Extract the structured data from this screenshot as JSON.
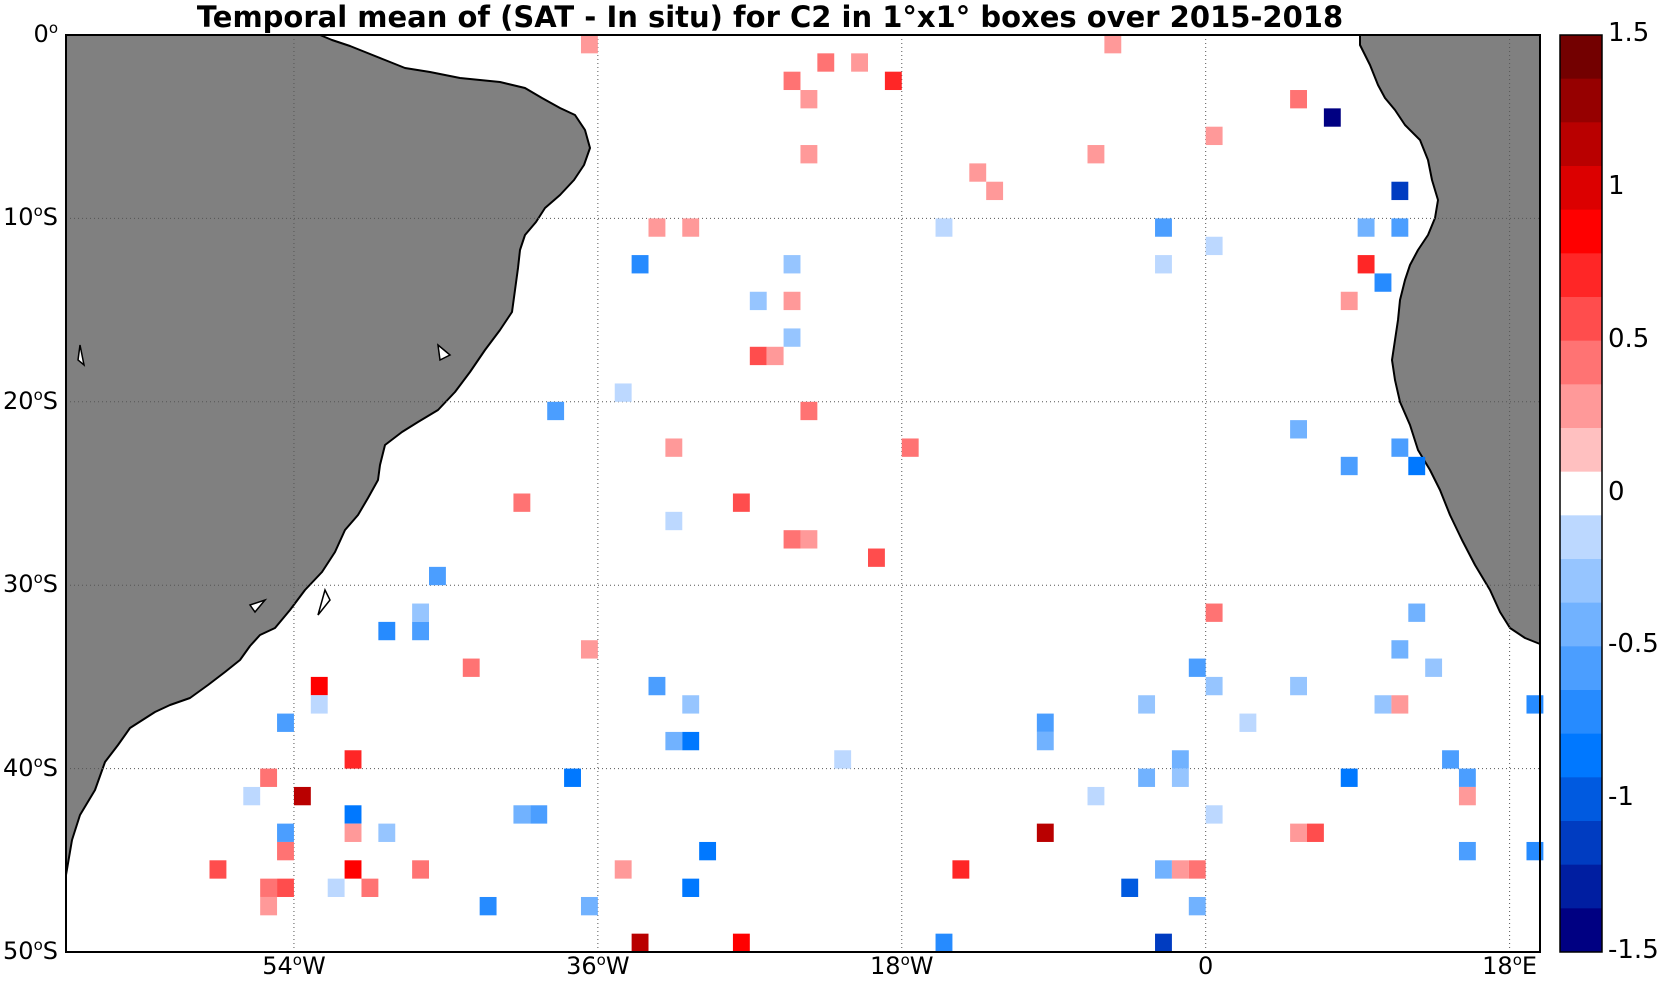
{
  "title": "Temporal mean of (SAT - In situ) for C2 in 1°x1° boxes over 2015-2018",
  "colors": {
    "land": "#808080",
    "coast": "#000000",
    "grid": "#555555"
  },
  "map": {
    "lon_range": [
      -67.5,
      19.8
    ],
    "lat_range": [
      -50,
      0
    ],
    "lat_ticks": [
      {
        "value": 0,
        "deg": "0",
        "sup": "o",
        "hemi": ""
      },
      {
        "value": -10,
        "deg": "10",
        "sup": "o",
        "hemi": "S"
      },
      {
        "value": -20,
        "deg": "20",
        "sup": "o",
        "hemi": "S"
      },
      {
        "value": -30,
        "deg": "30",
        "sup": "o",
        "hemi": "S"
      },
      {
        "value": -40,
        "deg": "40",
        "sup": "o",
        "hemi": "S"
      },
      {
        "value": -50,
        "deg": "50",
        "sup": "o",
        "hemi": "S"
      }
    ],
    "lon_ticks": [
      {
        "value": -54,
        "deg": "54",
        "sup": "o",
        "hemi": "W"
      },
      {
        "value": -36,
        "deg": "36",
        "sup": "o",
        "hemi": "W"
      },
      {
        "value": -18,
        "deg": "18",
        "sup": "o",
        "hemi": "W"
      },
      {
        "value": 0,
        "deg": "0",
        "sup": "",
        "hemi": ""
      },
      {
        "value": 18,
        "deg": "18",
        "sup": "o",
        "hemi": "E"
      }
    ]
  },
  "colorbar": {
    "range": [
      -1.5,
      1.5
    ],
    "labels": [
      "1.5",
      "1",
      "0.5",
      "0",
      "-0.5",
      "-1",
      "-1.5"
    ],
    "label_values": [
      1.5,
      1,
      0.5,
      0,
      -0.5,
      -1,
      -1.5
    ]
  },
  "boxes": [
    {
      "lon": -36.5,
      "lat": -0.5,
      "v": 0.15
    },
    {
      "lon": -5.5,
      "lat": -0.5,
      "v": 0.25
    },
    {
      "lon": -22.5,
      "lat": -1.5,
      "v": 0.35
    },
    {
      "lon": -20.5,
      "lat": -1.5,
      "v": 0.15
    },
    {
      "lon": -24.5,
      "lat": -2.5,
      "v": 0.35
    },
    {
      "lon": -18.5,
      "lat": -2.5,
      "v": 0.6
    },
    {
      "lon": -23.5,
      "lat": -3.5,
      "v": 0.2
    },
    {
      "lon": 5.5,
      "lat": -3.5,
      "v": 0.3
    },
    {
      "lon": 7.5,
      "lat": -4.5,
      "v": -1.4
    },
    {
      "lon": 0.5,
      "lat": -5.5,
      "v": 0.15
    },
    {
      "lon": -23.5,
      "lat": -6.5,
      "v": 0.2
    },
    {
      "lon": -6.5,
      "lat": -6.5,
      "v": 0.2
    },
    {
      "lon": -13.5,
      "lat": -7.5,
      "v": 0.15
    },
    {
      "lon": -12.5,
      "lat": -8.5,
      "v": 0.2
    },
    {
      "lon": 11.5,
      "lat": -8.5,
      "v": -1.1
    },
    {
      "lon": -32.5,
      "lat": -10.5,
      "v": 0.2
    },
    {
      "lon": -30.5,
      "lat": -10.5,
      "v": 0.2
    },
    {
      "lon": -15.5,
      "lat": -10.5,
      "v": -0.1
    },
    {
      "lon": -2.5,
      "lat": -10.5,
      "v": -0.45
    },
    {
      "lon": 9.5,
      "lat": -10.5,
      "v": -0.3
    },
    {
      "lon": 11.5,
      "lat": -10.5,
      "v": -0.55
    },
    {
      "lon": 0.5,
      "lat": -11.5,
      "v": -0.1
    },
    {
      "lon": -33.5,
      "lat": -12.5,
      "v": -0.6
    },
    {
      "lon": -24.5,
      "lat": -12.5,
      "v": -0.15
    },
    {
      "lon": -2.5,
      "lat": -12.5,
      "v": -0.1
    },
    {
      "lon": 9.5,
      "lat": -12.5,
      "v": 0.6
    },
    {
      "lon": 10.5,
      "lat": -13.5,
      "v": -0.7
    },
    {
      "lon": -26.5,
      "lat": -14.5,
      "v": -0.15
    },
    {
      "lon": -24.5,
      "lat": -14.5,
      "v": 0.15
    },
    {
      "lon": 8.5,
      "lat": -14.5,
      "v": 0.15
    },
    {
      "lon": -24.5,
      "lat": -16.5,
      "v": -0.25
    },
    {
      "lon": -26.5,
      "lat": -17.5,
      "v": 0.45
    },
    {
      "lon": -25.5,
      "lat": -17.5,
      "v": 0.15
    },
    {
      "lon": -34.5,
      "lat": -19.5,
      "v": -0.1
    },
    {
      "lon": -38.5,
      "lat": -20.5,
      "v": -0.45
    },
    {
      "lon": -23.5,
      "lat": -20.5,
      "v": 0.3
    },
    {
      "lon": 5.5,
      "lat": -21.5,
      "v": -0.4
    },
    {
      "lon": -31.5,
      "lat": -22.5,
      "v": 0.2
    },
    {
      "lon": -17.5,
      "lat": -22.5,
      "v": 0.3
    },
    {
      "lon": 11.5,
      "lat": -22.5,
      "v": -0.45
    },
    {
      "lon": 8.5,
      "lat": -23.5,
      "v": -0.45
    },
    {
      "lon": 12.5,
      "lat": -23.5,
      "v": -0.75
    },
    {
      "lon": -40.5,
      "lat": -25.5,
      "v": 0.3
    },
    {
      "lon": -27.5,
      "lat": -25.5,
      "v": 0.55
    },
    {
      "lon": -31.5,
      "lat": -26.5,
      "v": -0.1
    },
    {
      "lon": -24.5,
      "lat": -27.5,
      "v": 0.3
    },
    {
      "lon": -23.5,
      "lat": -27.5,
      "v": 0.15
    },
    {
      "lon": -19.5,
      "lat": -28.5,
      "v": 0.5
    },
    {
      "lon": -45.5,
      "lat": -29.5,
      "v": -0.45
    },
    {
      "lon": -46.5,
      "lat": -31.5,
      "v": -0.15
    },
    {
      "lon": 0.5,
      "lat": -31.5,
      "v": 0.3
    },
    {
      "lon": 12.5,
      "lat": -31.5,
      "v": -0.3
    },
    {
      "lon": -48.5,
      "lat": -32.5,
      "v": -0.6
    },
    {
      "lon": -46.5,
      "lat": -32.5,
      "v": -0.55
    },
    {
      "lon": -36.5,
      "lat": -33.5,
      "v": 0.15
    },
    {
      "lon": 11.5,
      "lat": -33.5,
      "v": -0.3
    },
    {
      "lon": -43.5,
      "lat": -34.5,
      "v": 0.3
    },
    {
      "lon": -0.5,
      "lat": -34.5,
      "v": -0.5
    },
    {
      "lon": 13.5,
      "lat": -34.5,
      "v": -0.15
    },
    {
      "lon": -52.5,
      "lat": -35.5,
      "v": 0.85
    },
    {
      "lon": -32.5,
      "lat": -35.5,
      "v": -0.55
    },
    {
      "lon": 0.5,
      "lat": -35.5,
      "v": -0.15
    },
    {
      "lon": 5.5,
      "lat": -35.5,
      "v": -0.25
    },
    {
      "lon": -52.5,
      "lat": -36.5,
      "v": -0.1
    },
    {
      "lon": -30.5,
      "lat": -36.5,
      "v": -0.15
    },
    {
      "lon": -3.5,
      "lat": -36.5,
      "v": -0.25
    },
    {
      "lon": 10.5,
      "lat": -36.5,
      "v": -0.15
    },
    {
      "lon": 11.5,
      "lat": -36.5,
      "v": 0.2
    },
    {
      "lon": 19.5,
      "lat": -36.5,
      "v": -0.65
    },
    {
      "lon": -54.5,
      "lat": -37.5,
      "v": -0.55
    },
    {
      "lon": -9.5,
      "lat": -37.5,
      "v": -0.45
    },
    {
      "lon": 2.5,
      "lat": -37.5,
      "v": -0.1
    },
    {
      "lon": -31.5,
      "lat": -38.5,
      "v": -0.35
    },
    {
      "lon": -30.5,
      "lat": -38.5,
      "v": -0.75
    },
    {
      "lon": -9.5,
      "lat": -38.5,
      "v": -0.35
    },
    {
      "lon": -50.5,
      "lat": -39.5,
      "v": 0.6
    },
    {
      "lon": -21.5,
      "lat": -39.5,
      "v": -0.1
    },
    {
      "lon": -1.5,
      "lat": -39.5,
      "v": -0.4
    },
    {
      "lon": 14.5,
      "lat": -39.5,
      "v": -0.5
    },
    {
      "lon": -55.5,
      "lat": -40.5,
      "v": 0.35
    },
    {
      "lon": -37.5,
      "lat": -40.5,
      "v": -0.85
    },
    {
      "lon": -3.5,
      "lat": -40.5,
      "v": -0.4
    },
    {
      "lon": -1.5,
      "lat": -40.5,
      "v": -0.25
    },
    {
      "lon": 8.5,
      "lat": -40.5,
      "v": -0.8
    },
    {
      "lon": 15.5,
      "lat": -40.5,
      "v": -0.55
    },
    {
      "lon": -56.5,
      "lat": -41.5,
      "v": -0.1
    },
    {
      "lon": -53.5,
      "lat": -41.5,
      "v": 1.15
    },
    {
      "lon": -6.5,
      "lat": -41.5,
      "v": -0.1
    },
    {
      "lon": 15.5,
      "lat": -41.5,
      "v": 0.15
    },
    {
      "lon": -50.5,
      "lat": -42.5,
      "v": -0.75
    },
    {
      "lon": -40.5,
      "lat": -42.5,
      "v": -0.3
    },
    {
      "lon": -39.5,
      "lat": -42.5,
      "v": -0.5
    },
    {
      "lon": 0.5,
      "lat": -42.5,
      "v": -0.1
    },
    {
      "lon": -54.5,
      "lat": -43.5,
      "v": -0.55
    },
    {
      "lon": -50.5,
      "lat": -43.5,
      "v": 0.15
    },
    {
      "lon": -48.5,
      "lat": -43.5,
      "v": -0.25
    },
    {
      "lon": -9.5,
      "lat": -43.5,
      "v": 1.05
    },
    {
      "lon": 5.5,
      "lat": -43.5,
      "v": 0.2
    },
    {
      "lon": 6.5,
      "lat": -43.5,
      "v": 0.45
    },
    {
      "lon": -54.5,
      "lat": -44.5,
      "v": 0.3
    },
    {
      "lon": -29.5,
      "lat": -44.5,
      "v": -0.75
    },
    {
      "lon": 15.5,
      "lat": -44.5,
      "v": -0.45
    },
    {
      "lon": 19.5,
      "lat": -44.5,
      "v": -0.6
    },
    {
      "lon": -58.5,
      "lat": -45.5,
      "v": 0.45
    },
    {
      "lon": -50.5,
      "lat": -45.5,
      "v": 0.85
    },
    {
      "lon": -46.5,
      "lat": -45.5,
      "v": 0.35
    },
    {
      "lon": -34.5,
      "lat": -45.5,
      "v": 0.2
    },
    {
      "lon": -14.5,
      "lat": -45.5,
      "v": 0.6
    },
    {
      "lon": -2.5,
      "lat": -45.5,
      "v": -0.4
    },
    {
      "lon": -1.5,
      "lat": -45.5,
      "v": 0.15
    },
    {
      "lon": -0.5,
      "lat": -45.5,
      "v": 0.3
    },
    {
      "lon": -55.5,
      "lat": -46.5,
      "v": 0.35
    },
    {
      "lon": -54.5,
      "lat": -46.5,
      "v": 0.45
    },
    {
      "lon": -51.5,
      "lat": -46.5,
      "v": -0.1
    },
    {
      "lon": -49.5,
      "lat": -46.5,
      "v": 0.35
    },
    {
      "lon": -30.5,
      "lat": -46.5,
      "v": -0.85
    },
    {
      "lon": -4.5,
      "lat": -46.5,
      "v": -0.95
    },
    {
      "lon": -55.5,
      "lat": -47.5,
      "v": 0.15
    },
    {
      "lon": -42.5,
      "lat": -47.5,
      "v": -0.6
    },
    {
      "lon": -36.5,
      "lat": -47.5,
      "v": -0.3
    },
    {
      "lon": -0.5,
      "lat": -47.5,
      "v": -0.35
    },
    {
      "lon": -33.5,
      "lat": -49.5,
      "v": 1.15
    },
    {
      "lon": -27.5,
      "lat": -49.5,
      "v": 0.75
    },
    {
      "lon": -15.5,
      "lat": -49.5,
      "v": -0.6
    },
    {
      "lon": -2.5,
      "lat": -49.5,
      "v": -1.15
    }
  ]
}
